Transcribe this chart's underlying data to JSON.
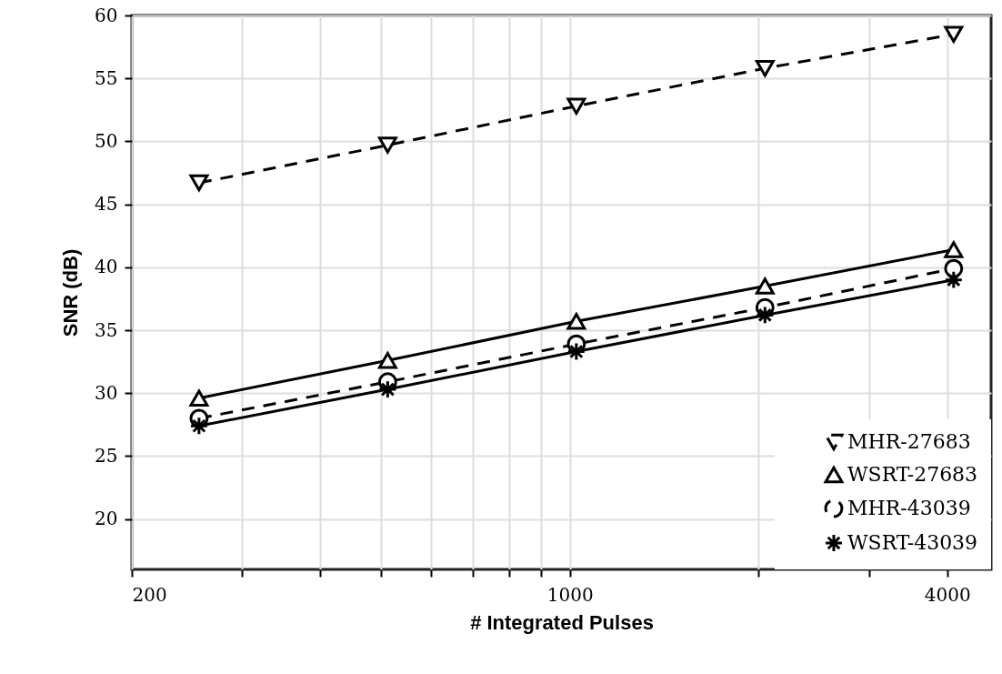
{
  "chart_data": {
    "type": "line",
    "xlabel": "# Integrated Pulses",
    "ylabel": "SNR (dB)",
    "x": [
      256,
      512,
      1024,
      2048,
      4096
    ],
    "series": [
      {
        "name": "MHR-27683",
        "color": "#000000",
        "marker": "triangle-down",
        "line_style": "dashed",
        "values": [
          46.7,
          49.7,
          52.8,
          55.8,
          58.5
        ]
      },
      {
        "name": "WSRT-27683",
        "color": "#000000",
        "marker": "triangle-up",
        "line_style": "solid",
        "values": [
          29.6,
          32.6,
          35.7,
          38.5,
          41.4
        ]
      },
      {
        "name": "MHR-43039",
        "color": "#000000",
        "marker": "circle",
        "line_style": "dashed",
        "values": [
          28.0,
          30.9,
          33.9,
          36.8,
          39.9
        ]
      },
      {
        "name": "WSRT-43039",
        "color": "#000000",
        "marker": "cross",
        "line_style": "solid",
        "values": [
          27.4,
          30.3,
          33.3,
          36.2,
          39.0
        ]
      }
    ],
    "log": "x",
    "xlim": [
      200,
      4700
    ],
    "xticks": [
      200,
      {
        "value": 300,
        "label": null
      },
      {
        "value": 400,
        "label": null
      },
      {
        "value": 500,
        "label": null
      },
      {
        "value": 600,
        "label": null
      },
      {
        "value": 700,
        "label": null
      },
      {
        "value": 800,
        "label": null
      },
      {
        "value": 900,
        "label": null
      },
      1000,
      {
        "value": 2000,
        "label": null
      },
      {
        "value": 3000,
        "label": null
      },
      4000
    ],
    "ylim": [
      16,
      60
    ],
    "yticks": [
      20,
      25,
      30,
      35,
      40,
      45,
      50,
      55,
      60
    ],
    "grid": true,
    "legend": "bottom right"
  }
}
